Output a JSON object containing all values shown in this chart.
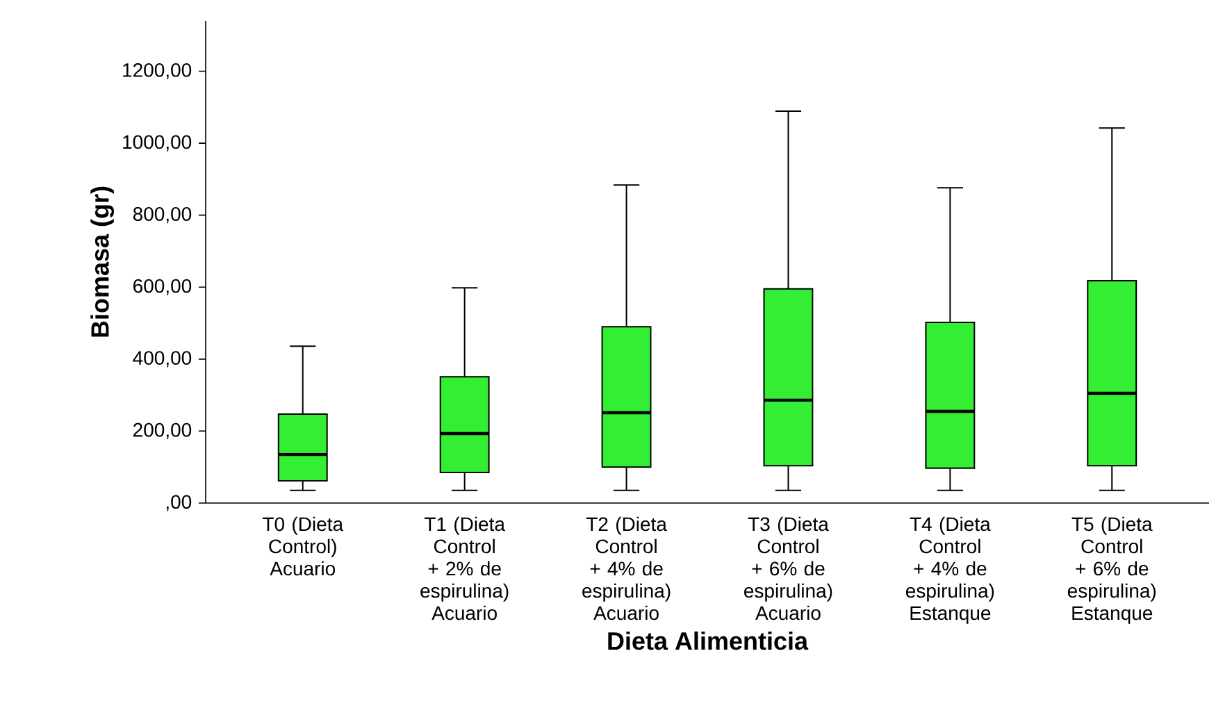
{
  "chart_data": {
    "type": "box",
    "xlabel": "Dieta Alimenticia",
    "ylabel": "Biomasa (gr)",
    "color": "#33ee33",
    "categories": [
      "T0 (Dieta Control) Acuario",
      "T1 (Dieta Control + 2% de espirulina) Acuario",
      "T2 (Dieta Control + 4% de espirulina) Acuario",
      "T3 (Dieta Control + 6% de espirulina) Acuario",
      "T4 (Dieta Control + 4% de espirulina) Estanque",
      "T5 (Dieta Control + 6% de espirulina) Estanque"
    ],
    "boxes": [
      {
        "low": 35,
        "q1": 62,
        "median": 135,
        "q3": 247,
        "high": 436
      },
      {
        "low": 35,
        "q1": 85,
        "median": 193,
        "q3": 351,
        "high": 598
      },
      {
        "low": 35,
        "q1": 100,
        "median": 251,
        "q3": 490,
        "high": 884
      },
      {
        "low": 35,
        "q1": 104,
        "median": 286,
        "q3": 595,
        "high": 1089
      },
      {
        "low": 35,
        "q1": 97,
        "median": 255,
        "q3": 502,
        "high": 876
      },
      {
        "low": 35,
        "q1": 104,
        "median": 305,
        "q3": 618,
        "high": 1042
      }
    ],
    "ylim": [
      0,
      1340
    ],
    "yticks": [
      {
        "value": 0,
        "label": ",00"
      },
      {
        "value": 200,
        "label": "200,00"
      },
      {
        "value": 400,
        "label": "400,00"
      },
      {
        "value": 600,
        "label": "600,00"
      },
      {
        "value": 800,
        "label": "800,00"
      },
      {
        "value": 1000,
        "label": "1000,00"
      },
      {
        "value": 1200,
        "label": "1200,00"
      }
    ]
  }
}
